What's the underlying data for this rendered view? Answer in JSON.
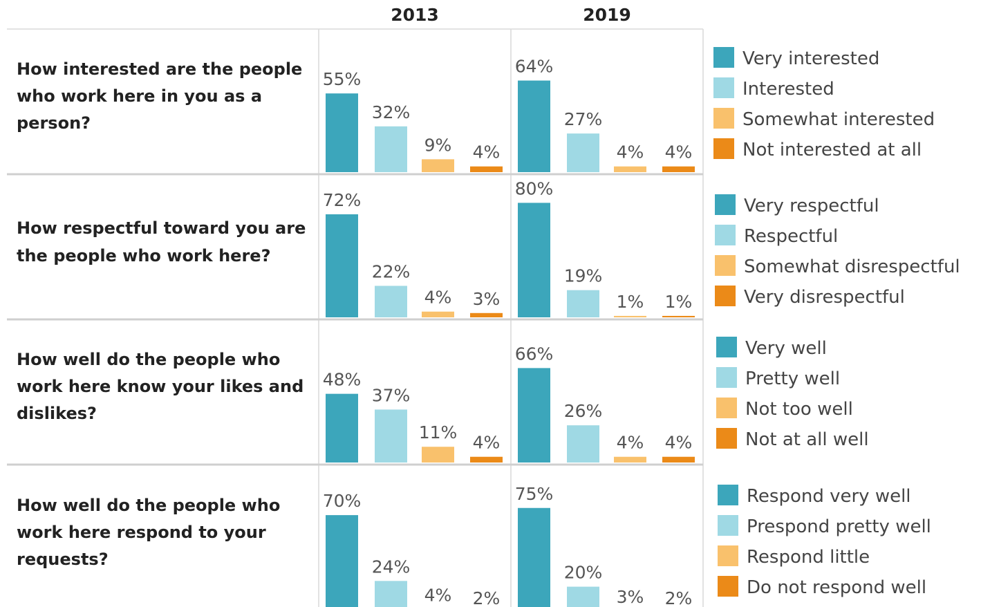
{
  "chart_data": {
    "type": "bar",
    "years": [
      "2013",
      "2019"
    ],
    "colors": [
      "#3ca6bb",
      "#9fd9e4",
      "#f9c16c",
      "#eb8a18"
    ],
    "ylim": [
      0,
      100
    ],
    "groups": [
      {
        "question": [
          "How interested are the people",
          "who work here in you as a",
          "person?"
        ],
        "categories": [
          "Very interested",
          "Interested",
          "Somewhat interested",
          "Not interested at all"
        ],
        "values": {
          "2013": [
            55,
            32,
            9,
            4
          ],
          "2019": [
            64,
            27,
            4,
            4
          ]
        }
      },
      {
        "question": [
          "How respectful toward you are",
          "the people who work here?"
        ],
        "categories": [
          "Very respectful",
          "Respectful",
          "Somewhat disrespectful",
          "Very disrespectful"
        ],
        "values": {
          "2013": [
            72,
            22,
            4,
            3
          ],
          "2019": [
            80,
            19,
            1,
            1
          ]
        }
      },
      {
        "question": [
          "How well do the people who",
          "work here know your likes and",
          "dislikes?"
        ],
        "categories": [
          "Very well",
          "Pretty well",
          "Not too well",
          "Not at all well"
        ],
        "values": {
          "2013": [
            48,
            37,
            11,
            4
          ],
          "2019": [
            66,
            26,
            4,
            4
          ]
        }
      },
      {
        "question": [
          "How well do the people who",
          "work here respond to your",
          "requests?"
        ],
        "categories": [
          "Respond very well",
          "Prespond pretty well",
          "Respond little",
          "Do not respond well"
        ],
        "values": {
          "2013": [
            70,
            24,
            4,
            2
          ],
          "2019": [
            75,
            20,
            3,
            2
          ]
        }
      }
    ]
  }
}
